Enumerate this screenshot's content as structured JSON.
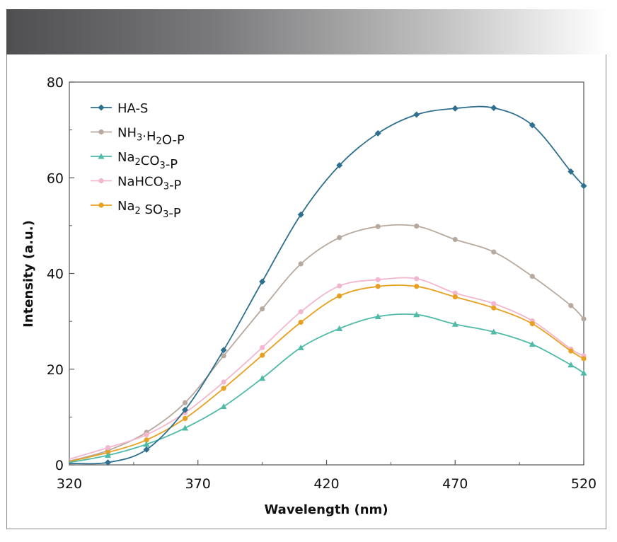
{
  "chart_data": {
    "type": "line",
    "xlabel": "Wavelength (nm)",
    "ylabel": "Intensity (a.u.)",
    "xlim": [
      320,
      520
    ],
    "ylim": [
      0,
      80
    ],
    "x_ticks": [
      "320",
      "370",
      "420",
      "470",
      "520"
    ],
    "y_ticks": [
      "0",
      "20",
      "40",
      "60",
      "80"
    ],
    "legend_position": "top-left",
    "grid": false,
    "x": [
      320,
      335,
      350,
      365,
      380,
      395,
      410,
      425,
      440,
      455,
      470,
      485,
      500,
      515,
      520
    ],
    "series": [
      {
        "name": "HA-S",
        "name_parts": [
          [
            "HA-S",
            "normal"
          ]
        ],
        "color": "#2e6f8f",
        "marker": "diamond",
        "values": [
          0.3,
          0.5,
          3.2,
          11.5,
          24.0,
          38.3,
          52.3,
          62.6,
          69.3,
          73.2,
          74.5,
          74.6,
          71.0,
          61.3,
          58.3
        ]
      },
      {
        "name": "NH3·H2O-P",
        "name_parts": [
          [
            "NH",
            "normal"
          ],
          [
            "3",
            "sub"
          ],
          [
            "·H",
            "normal"
          ],
          [
            "2",
            "sub"
          ],
          [
            "O-P",
            "normal"
          ]
        ],
        "color": "#b7a99d",
        "marker": "circle",
        "values": [
          0.8,
          3.0,
          6.8,
          13.0,
          22.8,
          32.6,
          42.0,
          47.5,
          49.8,
          49.9,
          47.1,
          44.5,
          39.4,
          33.3,
          30.5
        ]
      },
      {
        "name": "Na2CO3-P",
        "name_parts": [
          [
            "Na",
            "normal"
          ],
          [
            "2",
            "sub"
          ],
          [
            "CO",
            "normal"
          ],
          [
            "3",
            "sub"
          ],
          [
            "-P",
            "normal"
          ]
        ],
        "color": "#4fbaa8",
        "marker": "triangle",
        "values": [
          0.5,
          2.0,
          4.3,
          7.7,
          12.2,
          18.1,
          24.5,
          28.5,
          31.0,
          31.4,
          29.4,
          27.8,
          25.2,
          20.9,
          19.2
        ]
      },
      {
        "name": "NaHCO3-P",
        "name_parts": [
          [
            "NaHCO",
            "normal"
          ],
          [
            "3",
            "sub"
          ],
          [
            "-P",
            "normal"
          ]
        ],
        "color": "#f2b6cf",
        "marker": "circle",
        "values": [
          1.2,
          3.6,
          6.3,
          10.9,
          17.3,
          24.5,
          32.0,
          37.4,
          38.7,
          38.9,
          35.9,
          33.7,
          30.1,
          24.2,
          22.8
        ]
      },
      {
        "name": "Na2SO3-P",
        "name_parts": [
          [
            "Na",
            "normal"
          ],
          [
            "2",
            "sub"
          ],
          [
            " SO",
            "normal"
          ],
          [
            "3",
            "sub"
          ],
          [
            "-P",
            "normal"
          ]
        ],
        "color": "#e8a020",
        "marker": "circle",
        "values": [
          0.7,
          2.6,
          5.2,
          9.7,
          16.0,
          22.9,
          29.8,
          35.3,
          37.3,
          37.3,
          35.1,
          32.8,
          29.5,
          23.8,
          22.2
        ]
      }
    ]
  }
}
